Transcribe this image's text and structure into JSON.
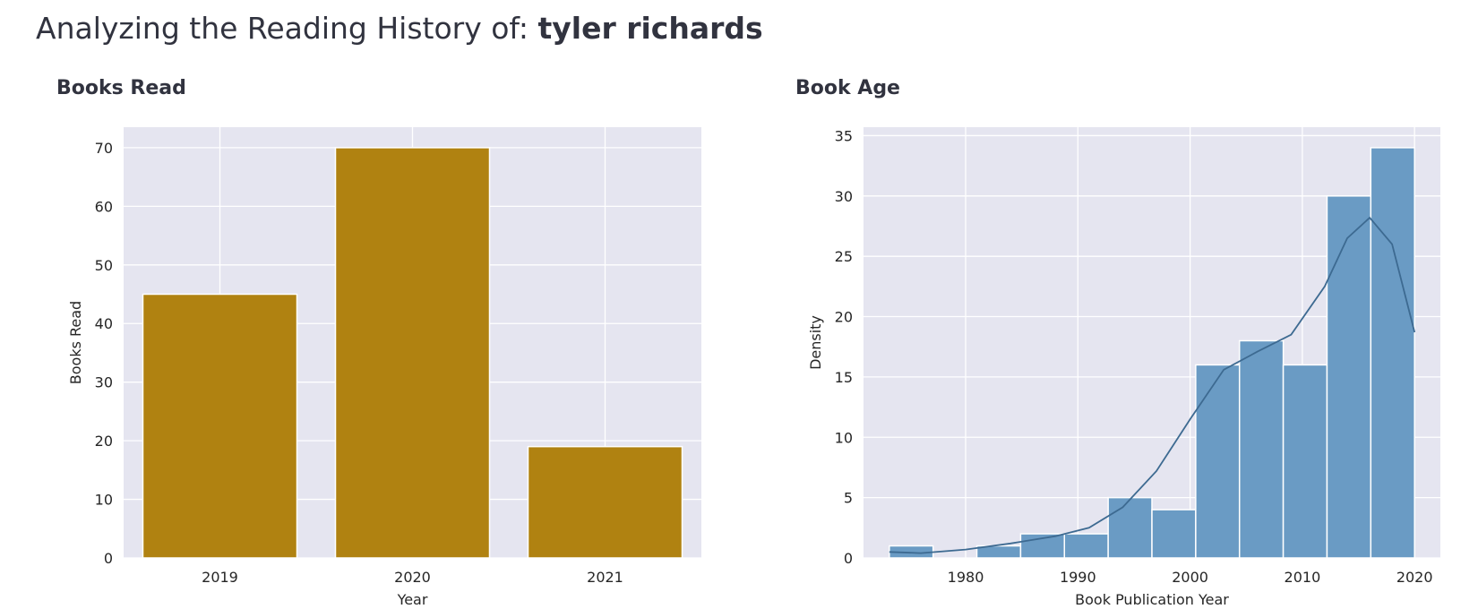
{
  "page": {
    "heading_prefix": "Analyzing the Reading History of: ",
    "heading_user": "tyler richards"
  },
  "sections": {
    "books_read_title": "Books Read",
    "book_age_title": "Book Age"
  },
  "colors": {
    "plot_background": "#e5e5f0",
    "bar_fill": "#b08211",
    "hist_fill": "#6a9bc4",
    "kde_line": "#3d6a91",
    "grid": "#ffffff"
  },
  "chart_data": [
    {
      "type": "bar",
      "title": "",
      "categories": [
        "2019",
        "2020",
        "2021"
      ],
      "values": [
        45,
        70,
        19
      ],
      "xlabel": "Year",
      "ylabel": "Books Read",
      "ylim": [
        0,
        73.5
      ],
      "yticks": [
        0,
        10,
        20,
        30,
        40,
        50,
        60,
        70
      ],
      "grid": true
    },
    {
      "type": "histogram",
      "title": "",
      "xlabel": "Book Publication Year",
      "ylabel": "Density",
      "xlim": [
        1970.9,
        2022.3
      ],
      "ylim": [
        0,
        35.7
      ],
      "xticks": [
        1980,
        1990,
        2000,
        2010,
        2020
      ],
      "yticks": [
        0,
        5,
        10,
        15,
        20,
        25,
        30,
        35
      ],
      "grid": true,
      "bins": [
        {
          "start": 1973.2,
          "end": 1977.1,
          "value": 1
        },
        {
          "start": 1977.1,
          "end": 1981.0,
          "value": 0
        },
        {
          "start": 1981.0,
          "end": 1984.9,
          "value": 1
        },
        {
          "start": 1984.9,
          "end": 1988.8,
          "value": 2
        },
        {
          "start": 1988.8,
          "end": 1992.7,
          "value": 2
        },
        {
          "start": 1992.7,
          "end": 1996.6,
          "value": 5
        },
        {
          "start": 1996.6,
          "end": 2000.5,
          "value": 4
        },
        {
          "start": 2000.5,
          "end": 2004.4,
          "value": 16
        },
        {
          "start": 2004.4,
          "end": 2008.3,
          "value": 18
        },
        {
          "start": 2008.3,
          "end": 2012.2,
          "value": 16
        },
        {
          "start": 2012.2,
          "end": 2016.1,
          "value": 30
        },
        {
          "start": 2016.1,
          "end": 2020.0,
          "value": 34
        }
      ],
      "kde": {
        "x": [
          1973.2,
          1976,
          1980,
          1984,
          1988,
          1991,
          1994,
          1997,
          2000,
          2003,
          2006,
          2009,
          2012,
          2014,
          2016,
          2018,
          2020
        ],
        "y": [
          0.5,
          0.4,
          0.7,
          1.2,
          1.8,
          2.5,
          4.2,
          7.2,
          11.5,
          15.6,
          17.1,
          18.5,
          22.5,
          26.5,
          28.2,
          26.0,
          18.7
        ]
      }
    }
  ]
}
